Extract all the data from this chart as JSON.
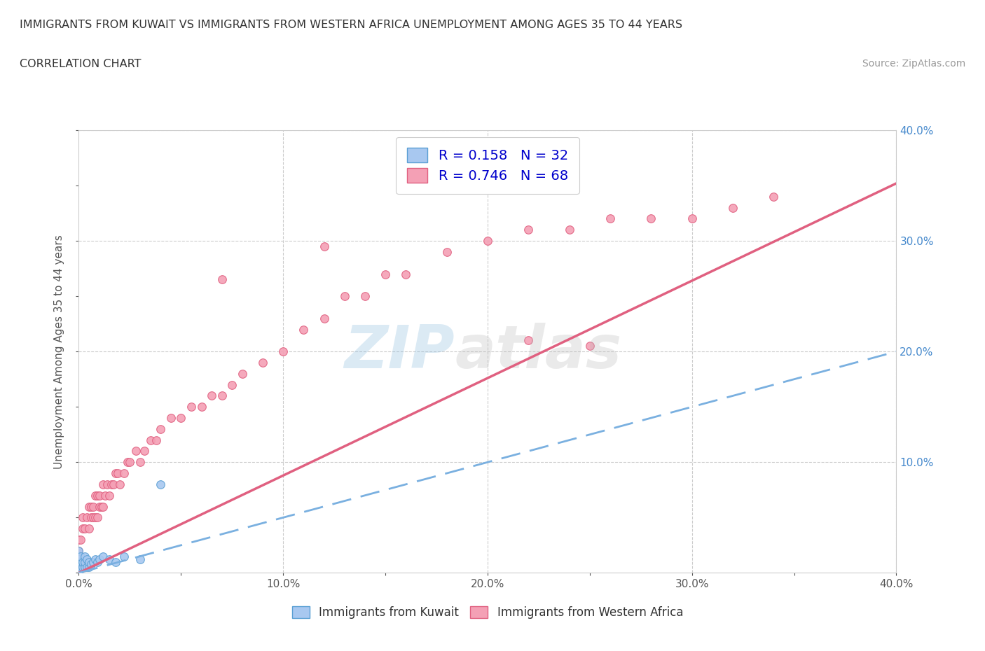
{
  "title_line1": "IMMIGRANTS FROM KUWAIT VS IMMIGRANTS FROM WESTERN AFRICA UNEMPLOYMENT AMONG AGES 35 TO 44 YEARS",
  "title_line2": "CORRELATION CHART",
  "source_text": "Source: ZipAtlas.com",
  "ylabel": "Unemployment Among Ages 35 to 44 years",
  "xlim": [
    0.0,
    0.4
  ],
  "ylim": [
    0.0,
    0.4
  ],
  "kuwait_color": "#a8c8f0",
  "kuwait_edge_color": "#5a9fd4",
  "western_africa_color": "#f4a0b5",
  "western_africa_edge_color": "#e06080",
  "kuwait_R": 0.158,
  "kuwait_N": 32,
  "western_africa_R": 0.746,
  "western_africa_N": 68,
  "kuwait_line_color": "#7ab0e0",
  "wa_line_color": "#e06080",
  "ytick_color": "#4488cc",
  "xtick_color": "#555555",
  "watermark_zip_color": "#88bbdd",
  "watermark_atlas_color": "#bbbbbb",
  "wa_line_slope": 0.88,
  "wa_line_intercept": 0.0,
  "kw_line_slope": 0.5,
  "kw_line_intercept": 0.0,
  "kuwait_x": [
    0.0,
    0.0,
    0.0,
    0.0,
    0.0,
    0.0,
    0.0,
    0.0,
    0.0,
    0.001,
    0.001,
    0.001,
    0.002,
    0.002,
    0.003,
    0.003,
    0.003,
    0.004,
    0.004,
    0.005,
    0.005,
    0.006,
    0.007,
    0.008,
    0.009,
    0.01,
    0.012,
    0.015,
    0.018,
    0.022,
    0.03,
    0.04
  ],
  "kuwait_y": [
    0.0,
    0.0,
    0.0,
    0.005,
    0.007,
    0.01,
    0.012,
    0.015,
    0.02,
    0.005,
    0.01,
    0.015,
    0.005,
    0.01,
    0.005,
    0.01,
    0.015,
    0.005,
    0.012,
    0.005,
    0.01,
    0.008,
    0.01,
    0.012,
    0.01,
    0.012,
    0.015,
    0.012,
    0.01,
    0.015,
    0.012,
    0.08
  ],
  "wa_x": [
    0.0,
    0.0,
    0.001,
    0.002,
    0.002,
    0.003,
    0.004,
    0.005,
    0.005,
    0.006,
    0.006,
    0.007,
    0.007,
    0.008,
    0.008,
    0.009,
    0.009,
    0.01,
    0.01,
    0.011,
    0.012,
    0.012,
    0.013,
    0.014,
    0.015,
    0.016,
    0.017,
    0.018,
    0.019,
    0.02,
    0.022,
    0.024,
    0.025,
    0.028,
    0.03,
    0.032,
    0.035,
    0.038,
    0.04,
    0.045,
    0.05,
    0.055,
    0.06,
    0.065,
    0.07,
    0.075,
    0.08,
    0.09,
    0.1,
    0.11,
    0.12,
    0.13,
    0.14,
    0.15,
    0.16,
    0.18,
    0.2,
    0.22,
    0.24,
    0.26,
    0.28,
    0.3,
    0.32,
    0.34,
    0.22,
    0.07,
    0.12,
    0.25
  ],
  "wa_y": [
    0.02,
    0.03,
    0.03,
    0.04,
    0.05,
    0.04,
    0.05,
    0.04,
    0.06,
    0.05,
    0.06,
    0.05,
    0.06,
    0.05,
    0.07,
    0.05,
    0.07,
    0.06,
    0.07,
    0.06,
    0.06,
    0.08,
    0.07,
    0.08,
    0.07,
    0.08,
    0.08,
    0.09,
    0.09,
    0.08,
    0.09,
    0.1,
    0.1,
    0.11,
    0.1,
    0.11,
    0.12,
    0.12,
    0.13,
    0.14,
    0.14,
    0.15,
    0.15,
    0.16,
    0.16,
    0.17,
    0.18,
    0.19,
    0.2,
    0.22,
    0.23,
    0.25,
    0.25,
    0.27,
    0.27,
    0.29,
    0.3,
    0.31,
    0.31,
    0.32,
    0.32,
    0.32,
    0.33,
    0.34,
    0.21,
    0.265,
    0.295,
    0.205
  ]
}
